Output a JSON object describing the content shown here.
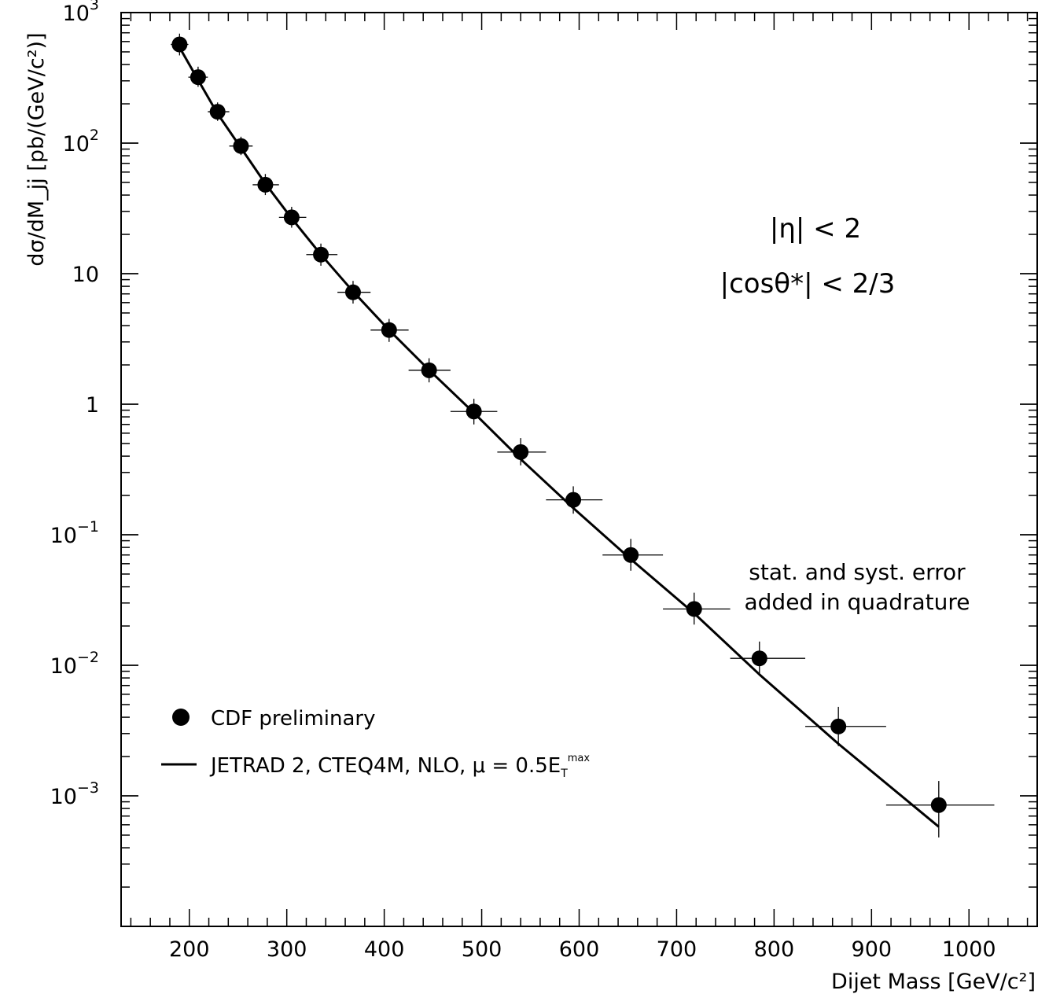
{
  "chart_data": {
    "type": "scatter",
    "xlabel": "Dijet Mass [GeV/c²]",
    "ylabel": "dσ/dM_jj [pb/(GeV/c²)]",
    "xlim": [
      130,
      1070
    ],
    "ylim": [
      0.0001,
      1000
    ],
    "yscale": "log",
    "x_ticks": [
      {
        "value": 200,
        "label": "200"
      },
      {
        "value": 300,
        "label": "300"
      },
      {
        "value": 400,
        "label": "400"
      },
      {
        "value": 500,
        "label": "500"
      },
      {
        "value": 600,
        "label": "600"
      },
      {
        "value": 700,
        "label": "700"
      },
      {
        "value": 800,
        "label": "800"
      },
      {
        "value": 900,
        "label": "900"
      },
      {
        "value": 1000,
        "label": "1000"
      }
    ],
    "y_ticks": [
      {
        "value": 1000,
        "base": "10",
        "exp": "3"
      },
      {
        "value": 100,
        "base": "10",
        "exp": "2"
      },
      {
        "value": 10,
        "base": "10",
        "exp": ""
      },
      {
        "value": 1,
        "base": "1",
        "exp": ""
      },
      {
        "value": 0.1,
        "base": "10",
        "exp": "−1"
      },
      {
        "value": 0.01,
        "base": "10",
        "exp": "−2"
      },
      {
        "value": 0.001,
        "base": "10",
        "exp": "−3"
      }
    ],
    "series": [
      {
        "name": "CDF preliminary",
        "kind": "points",
        "points": [
          {
            "x": 190,
            "y": 570,
            "xlo": 181,
            "xhi": 199,
            "ylo": 470,
            "yhi": 690
          },
          {
            "x": 209,
            "y": 320,
            "xlo": 199,
            "xhi": 219,
            "ylo": 270,
            "yhi": 385
          },
          {
            "x": 229,
            "y": 174,
            "xlo": 219,
            "xhi": 241,
            "ylo": 148,
            "yhi": 205
          },
          {
            "x": 253,
            "y": 95,
            "xlo": 241,
            "xhi": 265,
            "ylo": 81,
            "yhi": 112
          },
          {
            "x": 278,
            "y": 48,
            "xlo": 265,
            "xhi": 292,
            "ylo": 40,
            "yhi": 58
          },
          {
            "x": 305,
            "y": 27,
            "xlo": 292,
            "xhi": 320,
            "ylo": 22.5,
            "yhi": 32.5
          },
          {
            "x": 335,
            "y": 14,
            "xlo": 320,
            "xhi": 352,
            "ylo": 11.5,
            "yhi": 17
          },
          {
            "x": 368,
            "y": 7.2,
            "xlo": 352,
            "xhi": 386,
            "ylo": 5.9,
            "yhi": 8.8
          },
          {
            "x": 405,
            "y": 3.7,
            "xlo": 386,
            "xhi": 425,
            "ylo": 3.0,
            "yhi": 4.5
          },
          {
            "x": 446,
            "y": 1.82,
            "xlo": 425,
            "xhi": 468,
            "ylo": 1.47,
            "yhi": 2.25
          },
          {
            "x": 492,
            "y": 0.88,
            "xlo": 468,
            "xhi": 516,
            "ylo": 0.7,
            "yhi": 1.1
          },
          {
            "x": 540,
            "y": 0.43,
            "xlo": 516,
            "xhi": 566,
            "ylo": 0.34,
            "yhi": 0.55
          },
          {
            "x": 594,
            "y": 0.185,
            "xlo": 566,
            "xhi": 624,
            "ylo": 0.145,
            "yhi": 0.235
          },
          {
            "x": 653,
            "y": 0.07,
            "xlo": 624,
            "xhi": 686,
            "ylo": 0.053,
            "yhi": 0.093
          },
          {
            "x": 718,
            "y": 0.027,
            "xlo": 686,
            "xhi": 755,
            "ylo": 0.0205,
            "yhi": 0.036
          },
          {
            "x": 785,
            "y": 0.0113,
            "xlo": 755,
            "xhi": 832,
            "ylo": 0.0085,
            "yhi": 0.0152
          },
          {
            "x": 866,
            "y": 0.0034,
            "xlo": 832,
            "xhi": 915,
            "ylo": 0.0024,
            "yhi": 0.0048
          },
          {
            "x": 969,
            "y": 0.00085,
            "xlo": 915,
            "xhi": 1026,
            "ylo": 0.00048,
            "yhi": 0.0013
          }
        ]
      },
      {
        "name": "JETRAD 2, CTEQ4M, NLO, μ = 0.5E",
        "name_sub": "T",
        "name_sup": "max",
        "kind": "line",
        "points": [
          {
            "x": 190,
            "y": 540
          },
          {
            "x": 209,
            "y": 305
          },
          {
            "x": 229,
            "y": 168
          },
          {
            "x": 253,
            "y": 92
          },
          {
            "x": 278,
            "y": 49
          },
          {
            "x": 305,
            "y": 26.5
          },
          {
            "x": 335,
            "y": 14
          },
          {
            "x": 368,
            "y": 7.3
          },
          {
            "x": 405,
            "y": 3.7
          },
          {
            "x": 446,
            "y": 1.83
          },
          {
            "x": 492,
            "y": 0.86
          },
          {
            "x": 540,
            "y": 0.38
          },
          {
            "x": 594,
            "y": 0.16
          },
          {
            "x": 653,
            "y": 0.065
          },
          {
            "x": 718,
            "y": 0.025
          },
          {
            "x": 785,
            "y": 0.0085
          },
          {
            "x": 866,
            "y": 0.0025
          },
          {
            "x": 969,
            "y": 0.00058
          }
        ]
      }
    ],
    "legend": {
      "placement": "bottom-left"
    },
    "annotations": {
      "cut1": "|η| < 2",
      "cut2": "|cosθ*| < 2/3",
      "note1": "stat. and syst. error",
      "note2": "added in quadrature"
    }
  }
}
